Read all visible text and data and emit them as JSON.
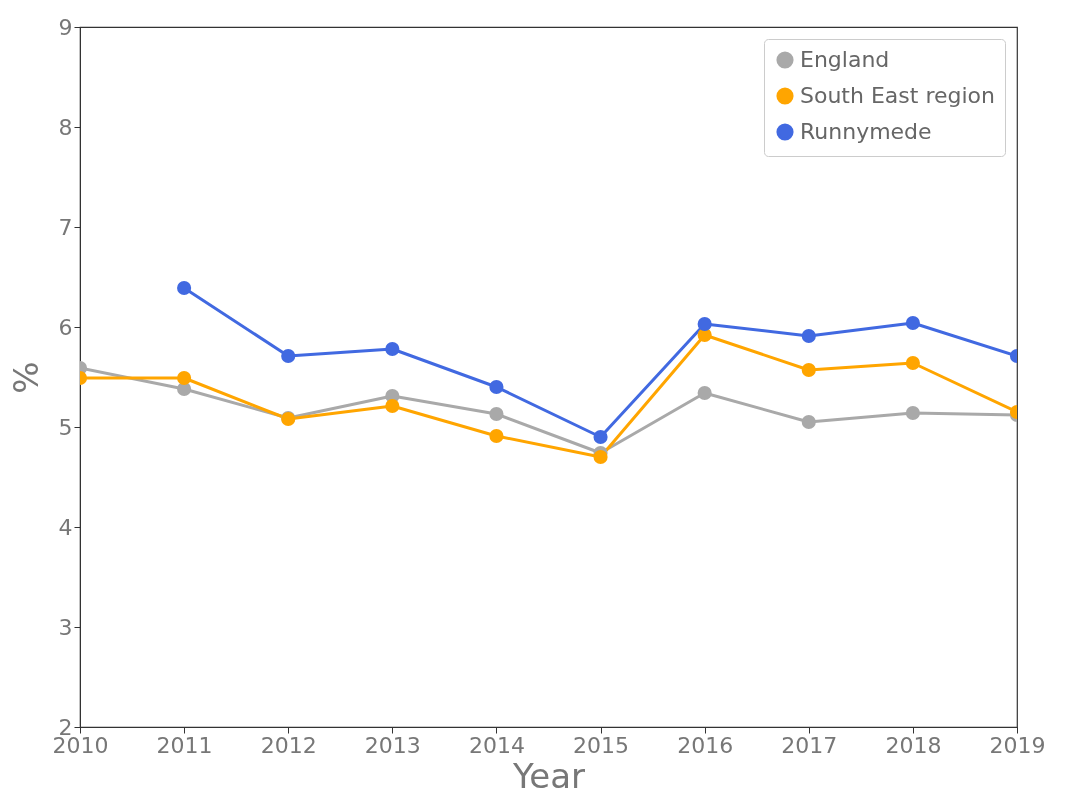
{
  "chart_data": {
    "type": "line",
    "xlabel": "Year",
    "ylabel": "%",
    "x": [
      2010,
      2011,
      2012,
      2013,
      2014,
      2015,
      2016,
      2017,
      2018,
      2019
    ],
    "series": [
      {
        "name": "England",
        "color": "#a9a9a9",
        "values": [
          5.59,
          5.38,
          5.09,
          5.31,
          5.13,
          4.74,
          5.34,
          5.05,
          5.14,
          5.12
        ]
      },
      {
        "name": "South East region",
        "color": "#ffa500",
        "values": [
          5.49,
          5.49,
          5.08,
          5.21,
          4.91,
          4.7,
          5.92,
          5.57,
          5.64,
          5.15
        ]
      },
      {
        "name": "Runnymede",
        "color": "#4169e1",
        "values": [
          null,
          6.39,
          5.71,
          5.78,
          5.4,
          4.9,
          6.03,
          5.91,
          6.04,
          5.71
        ]
      }
    ],
    "xlim": [
      2010,
      2019
    ],
    "xticks": [
      2010,
      2011,
      2012,
      2013,
      2014,
      2015,
      2016,
      2017,
      2018,
      2019
    ],
    "ylim": [
      2,
      9
    ],
    "yticks": [
      2,
      3,
      4,
      5,
      6,
      7,
      8,
      9
    ],
    "grid": false,
    "legend": "top right",
    "marker": "circle",
    "line_style": "solid"
  }
}
